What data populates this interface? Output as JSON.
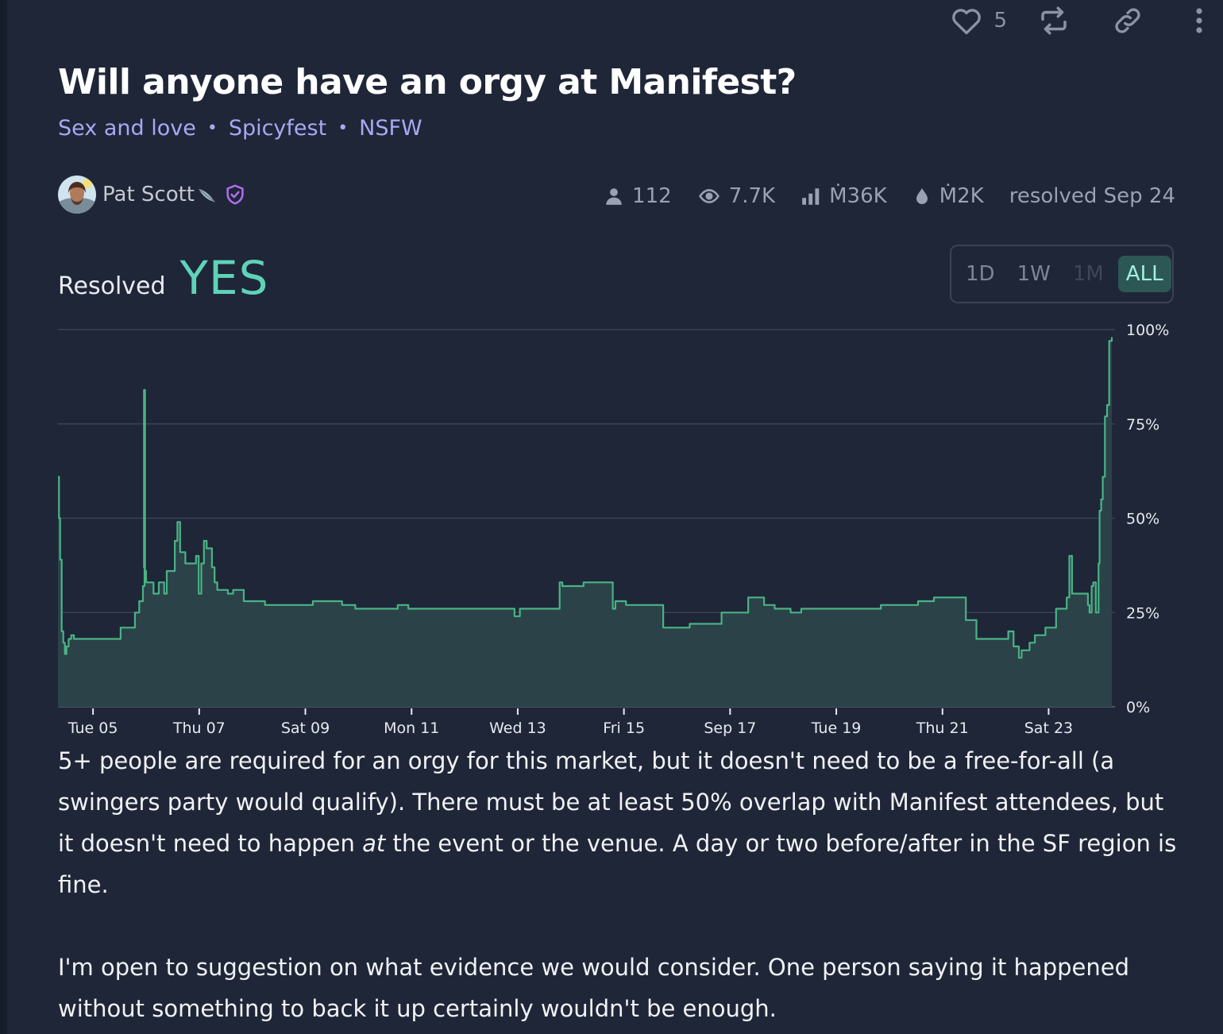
{
  "topbar": {
    "like_count": "5",
    "icons": [
      "heart-icon",
      "repost-icon",
      "link-icon",
      "more-icon"
    ]
  },
  "market": {
    "title": "Will anyone have an orgy at Manifest?",
    "tags": [
      "Sex and love",
      "Spicyfest",
      "NSFW"
    ],
    "separator": "•"
  },
  "author": {
    "name": "Pat Scott",
    "badges": [
      "feather-icon",
      "verified-shield-icon"
    ]
  },
  "stats": {
    "traders": "112",
    "views": "7.7K",
    "volume": "Ṁ36K",
    "liquidity": "Ṁ2K",
    "resolved": "resolved Sep 24"
  },
  "resolution": {
    "label": "Resolved",
    "value": "YES"
  },
  "time_range": {
    "options": [
      "1D",
      "1W",
      "1M",
      "ALL"
    ],
    "active": "ALL",
    "disabled": [
      "1M"
    ]
  },
  "colors": {
    "background": "#1f2637",
    "accent": "#5fd3ba",
    "line": "#49b385",
    "area": "#2b4248",
    "link": "#a7a9f4"
  },
  "chart_data": {
    "type": "area",
    "step": true,
    "ylim": [
      0,
      100
    ],
    "y_ticks": [
      "0%",
      "25%",
      "50%",
      "75%",
      "100%"
    ],
    "x_ticks": [
      "Tue 05",
      "Thu 07",
      "Sat 09",
      "Mon 11",
      "Wed 13",
      "Fri 15",
      "Sep 17",
      "Tue 19",
      "Thu 21",
      "Sat 23"
    ],
    "x_tick_positions": [
      0.66,
      2.66,
      4.66,
      6.66,
      8.66,
      10.66,
      12.66,
      14.66,
      16.66,
      18.66
    ],
    "x_range": [
      0,
      19.85
    ],
    "grid": true,
    "series": [
      {
        "x": [
          0,
          0.02,
          0.04,
          0.07,
          0.1,
          0.13,
          0.16,
          0.2,
          0.25,
          0.3,
          0.37,
          0.45,
          1.18,
          1.45,
          1.53,
          1.6,
          1.63,
          1.62,
          1.64,
          1.66,
          1.8,
          1.9,
          2.0,
          2.05,
          2.2,
          2.25,
          2.3,
          2.4,
          2.6,
          2.65,
          2.7,
          2.75,
          2.8,
          2.9,
          2.95,
          3.0,
          3.2,
          3.3,
          3.5,
          3.9,
          4.8,
          5.35,
          5.6,
          6.4,
          6.6,
          7.9,
          8.3,
          8.6,
          8.7,
          9.45,
          9.5,
          9.9,
          10.45,
          10.5,
          10.7,
          11.4,
          11.9,
          12.5,
          13.0,
          13.3,
          13.5,
          13.8,
          13.9,
          14.0,
          14.5,
          15.0,
          15.5,
          16.2,
          16.5,
          17.1,
          17.3,
          17.9,
          18.0,
          18.1,
          18.15,
          18.3,
          18.4,
          18.6,
          18.8,
          19.0,
          19.05,
          19.1,
          19.25,
          19.32,
          19.4,
          19.43,
          19.47,
          19.5,
          19.55,
          19.6,
          19.62,
          19.65,
          19.68,
          19.72,
          19.76,
          19.8,
          19.85
        ],
        "y": [
          61,
          50,
          39,
          20,
          17,
          14,
          16,
          18,
          19,
          18,
          18,
          18,
          21,
          25,
          28,
          32,
          37,
          84,
          36,
          33,
          30,
          33,
          30,
          36,
          44,
          49,
          41,
          38,
          40,
          30,
          38,
          44,
          42,
          37,
          33,
          31,
          30,
          31,
          28,
          27,
          28,
          27,
          26,
          27,
          26,
          26,
          26,
          24,
          26,
          33,
          32,
          33,
          26,
          28,
          27,
          21,
          22,
          25,
          29,
          27,
          26,
          25,
          25,
          26,
          26,
          26,
          27,
          28,
          29,
          23,
          18,
          20,
          16,
          13,
          15,
          17,
          19,
          21,
          26,
          29,
          40,
          30,
          30,
          30,
          27,
          25,
          32,
          33,
          25,
          38,
          52,
          55,
          61,
          77,
          80,
          97,
          98
        ]
      }
    ]
  },
  "description": {
    "p1_before": "5+ people are required for an orgy for this market, but it doesn't need to be a free-for-all (a swingers party would qualify). There must be at least 50% overlap with Manifest attendees, but it doesn't need to happen ",
    "p1_em": "at",
    "p1_after": " the event or the venue. A day or two before/after in the SF region is fine.",
    "p2": "I'm open to suggestion on what evidence we would consider. One person saying it happened without something to back it up certainly wouldn't be enough."
  }
}
